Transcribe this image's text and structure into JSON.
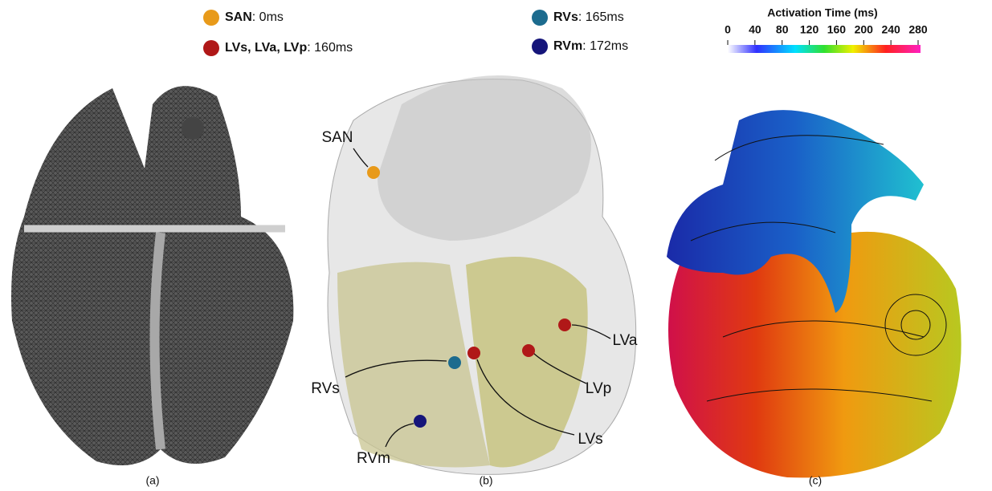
{
  "figure": {
    "panels": [
      {
        "caption": "(a)"
      },
      {
        "caption": "(b)",
        "legend": [
          {
            "name": "SAN",
            "text": ": 0ms",
            "color": "#e89a1a"
          },
          {
            "name": "LVs, LVa, LVp",
            "text": ": 160ms",
            "color": "#b01818"
          },
          {
            "name": "RVs",
            "text": ": 165ms",
            "color": "#1c6b8e"
          },
          {
            "name": "RVm",
            "text": ": 172ms",
            "color": "#15157a"
          }
        ],
        "labels": [
          "SAN",
          "RVs",
          "RVm",
          "LVa",
          "LVp",
          "LVs"
        ]
      },
      {
        "caption": "(c)",
        "colorbar": {
          "title": "Activation Time (ms)",
          "range": [
            0,
            280
          ],
          "ticks": [
            0,
            40,
            80,
            120,
            160,
            200,
            240,
            280
          ]
        }
      }
    ]
  }
}
